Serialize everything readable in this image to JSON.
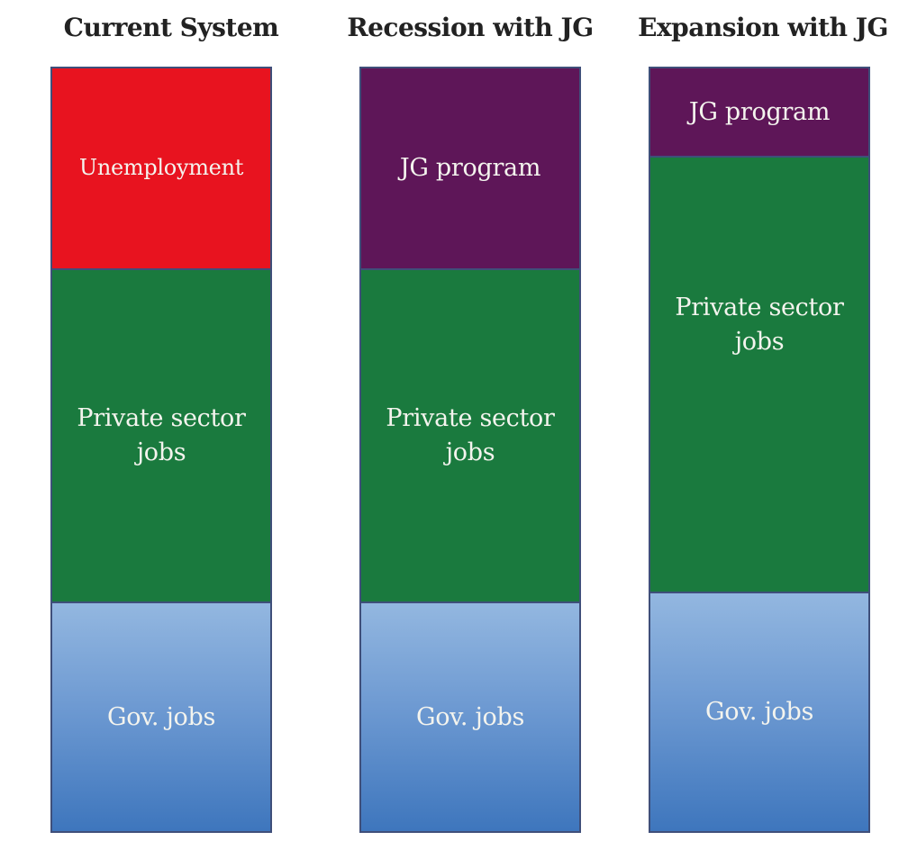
{
  "columns": [
    {
      "title": "Current System",
      "segments": [
        {
          "label": "Unemployment",
          "kind": "unemployment"
        },
        {
          "label": "Private sector jobs",
          "kind": "private"
        },
        {
          "label": "Gov. jobs",
          "kind": "gov"
        }
      ]
    },
    {
      "title": "Recession with JG",
      "segments": [
        {
          "label": "JG program",
          "kind": "jg"
        },
        {
          "label": "Private sector jobs",
          "kind": "private"
        },
        {
          "label": "Gov. jobs",
          "kind": "gov"
        }
      ]
    },
    {
      "title": "Expansion with JG",
      "segments": [
        {
          "label": "JG program",
          "kind": "jg"
        },
        {
          "label": "Private sector jobs",
          "kind": "private"
        },
        {
          "label": "Gov. jobs",
          "kind": "gov"
        }
      ]
    }
  ],
  "colors": {
    "unemployment": "#e8131f",
    "jg": "#5e1658",
    "private": "#1a7a3e",
    "gov_top": "#93b7e0",
    "gov_bottom": "#3e76bd",
    "text": "#f4f4ee",
    "title": "#222222"
  }
}
